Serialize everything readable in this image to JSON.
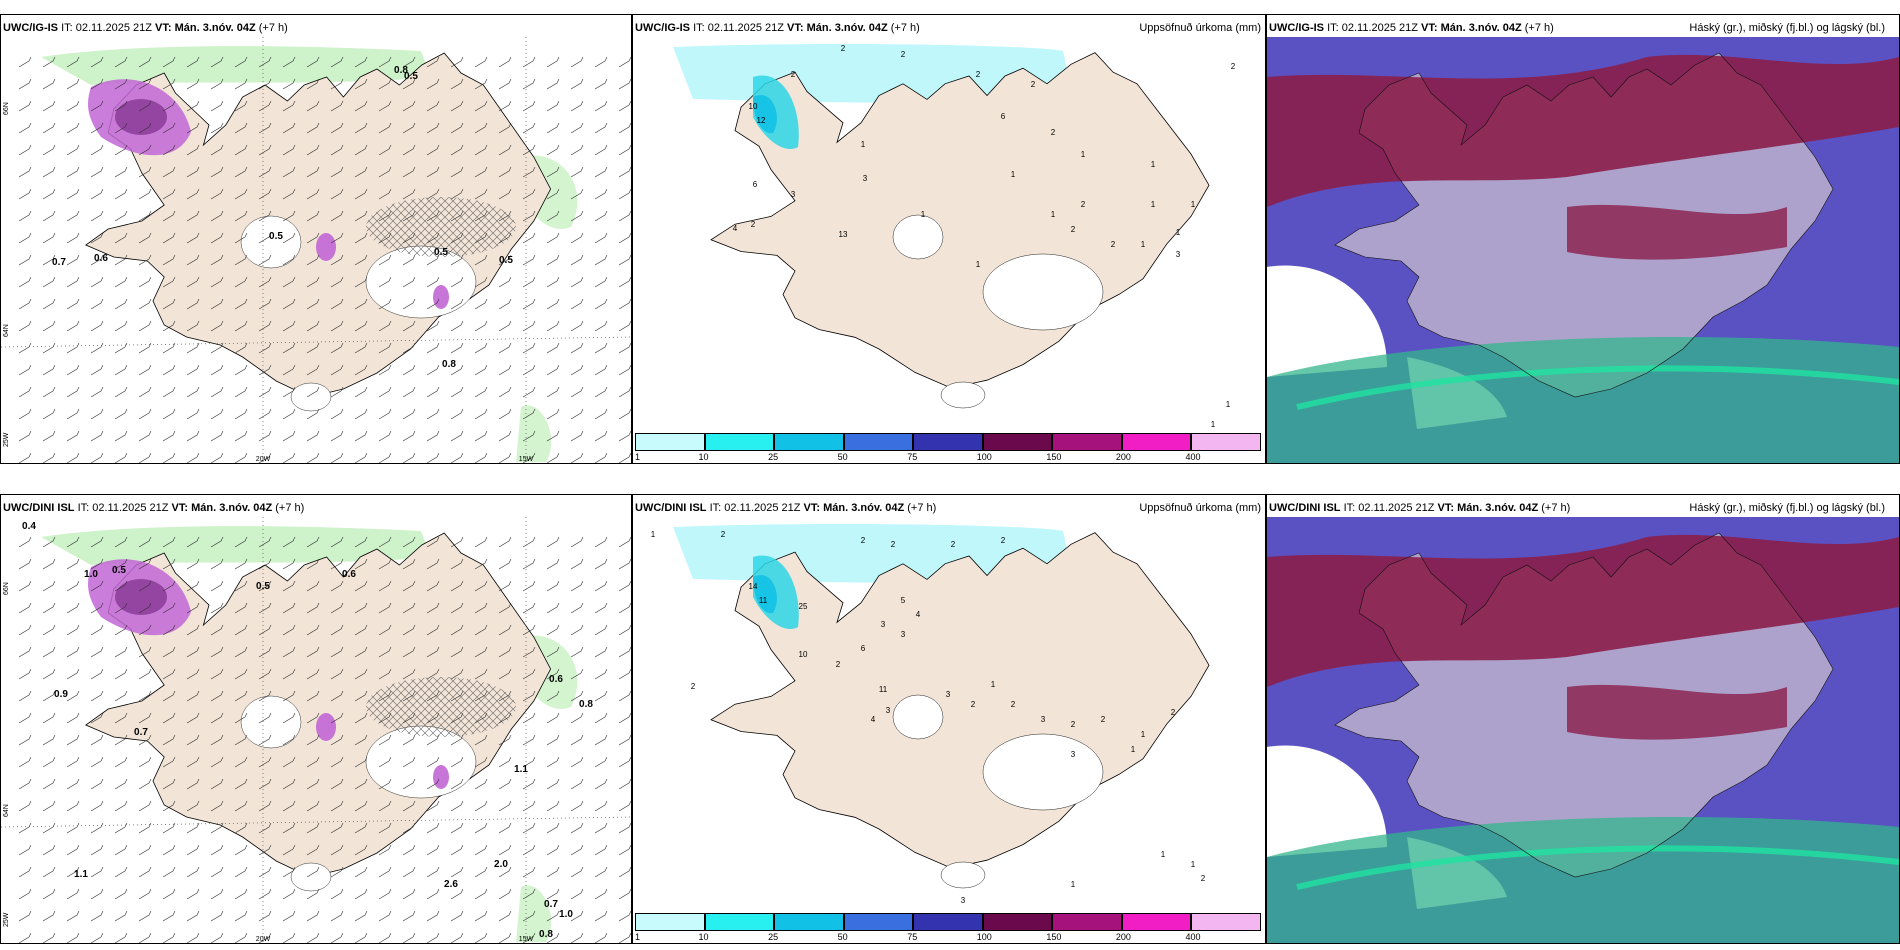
{
  "colors": {
    "land": "#f2e4d6",
    "sea": "#ffffff",
    "light_green": "#c9f1c3",
    "dark_green": "#1f7a2e",
    "magenta": "#c266d6",
    "purple": "#7d2f8a",
    "cyan_light": "#bff7fb",
    "cyan": "#2ed6e8",
    "maroon": "#8b1e4a",
    "slate_blue": "#5a52c2",
    "teal": "#33b58c"
  },
  "rows": [
    {
      "model": "UWC/IG-IS",
      "init_label": "IT: 02.11.2025 21Z",
      "valid_label": "VT: Mán. 3.nóv. 04Z",
      "lead_label": "(+7 h)",
      "precip_title": "Uppsöfnuð úrkoma (mm)",
      "cloud_title": "Háský (gr.), miðský (fj.bl.) og lágský (bl.)",
      "map_labels": [
        "0.8",
        "0.5",
        "0.7",
        "0.6",
        "0.5",
        "0.5",
        "0.5",
        "0.8"
      ],
      "precip_labels": [
        "2",
        "2",
        "2",
        "2",
        "2",
        "1",
        "10",
        "12",
        "6",
        "4",
        "3",
        "3",
        "2",
        "1",
        "13",
        "6",
        "2",
        "1",
        "1",
        "2",
        "1",
        "1",
        "1",
        "2",
        "1",
        "3",
        "2",
        "1",
        "1",
        "1",
        "2",
        "1",
        "1"
      ],
      "lat_labels": [
        "66N",
        "64N"
      ],
      "lon_labels": [
        "25W",
        "20W",
        "15W"
      ]
    },
    {
      "model": "UWC/DINI ISL",
      "init_label": "IT: 02.11.2025 21Z",
      "valid_label": "VT: Mán. 3.nóv. 04Z",
      "lead_label": "(+7 h)",
      "precip_title": "Uppsöfnuð úrkoma (mm)",
      "cloud_title": "Háský (gr.), miðský (fj.bl.) og lágský (bl.)",
      "map_labels": [
        "0.4",
        "1.0",
        "0.5",
        "0.5",
        "0.6",
        "0.6",
        "0.8",
        "1.1",
        "0.9",
        "1.1",
        "0.7",
        "1.0",
        "0.8",
        "2.0",
        "2.6",
        "0.7"
      ],
      "precip_labels": [
        "1",
        "2",
        "2",
        "2",
        "2",
        "2",
        "14",
        "11",
        "25",
        "10",
        "6",
        "5",
        "4",
        "3",
        "3",
        "2",
        "2",
        "11",
        "3",
        "4",
        "3",
        "2",
        "1",
        "2",
        "3",
        "2",
        "3",
        "2",
        "1",
        "1",
        "2",
        "3",
        "1",
        "2",
        "1",
        "1"
      ],
      "lat_labels": [
        "66N",
        "64N"
      ],
      "lon_labels": [
        "25W",
        "20W",
        "15W"
      ]
    }
  ],
  "colorbar": {
    "ticks": [
      "1",
      "10",
      "25",
      "50",
      "75",
      "100",
      "150",
      "200",
      "400"
    ],
    "colors": [
      "#c8fbfb",
      "#28f0f0",
      "#12c2e6",
      "#3a6fe0",
      "#3333b0",
      "#6a0a4c",
      "#a6127c",
      "#f01ec4",
      "#f3b6f0"
    ]
  }
}
